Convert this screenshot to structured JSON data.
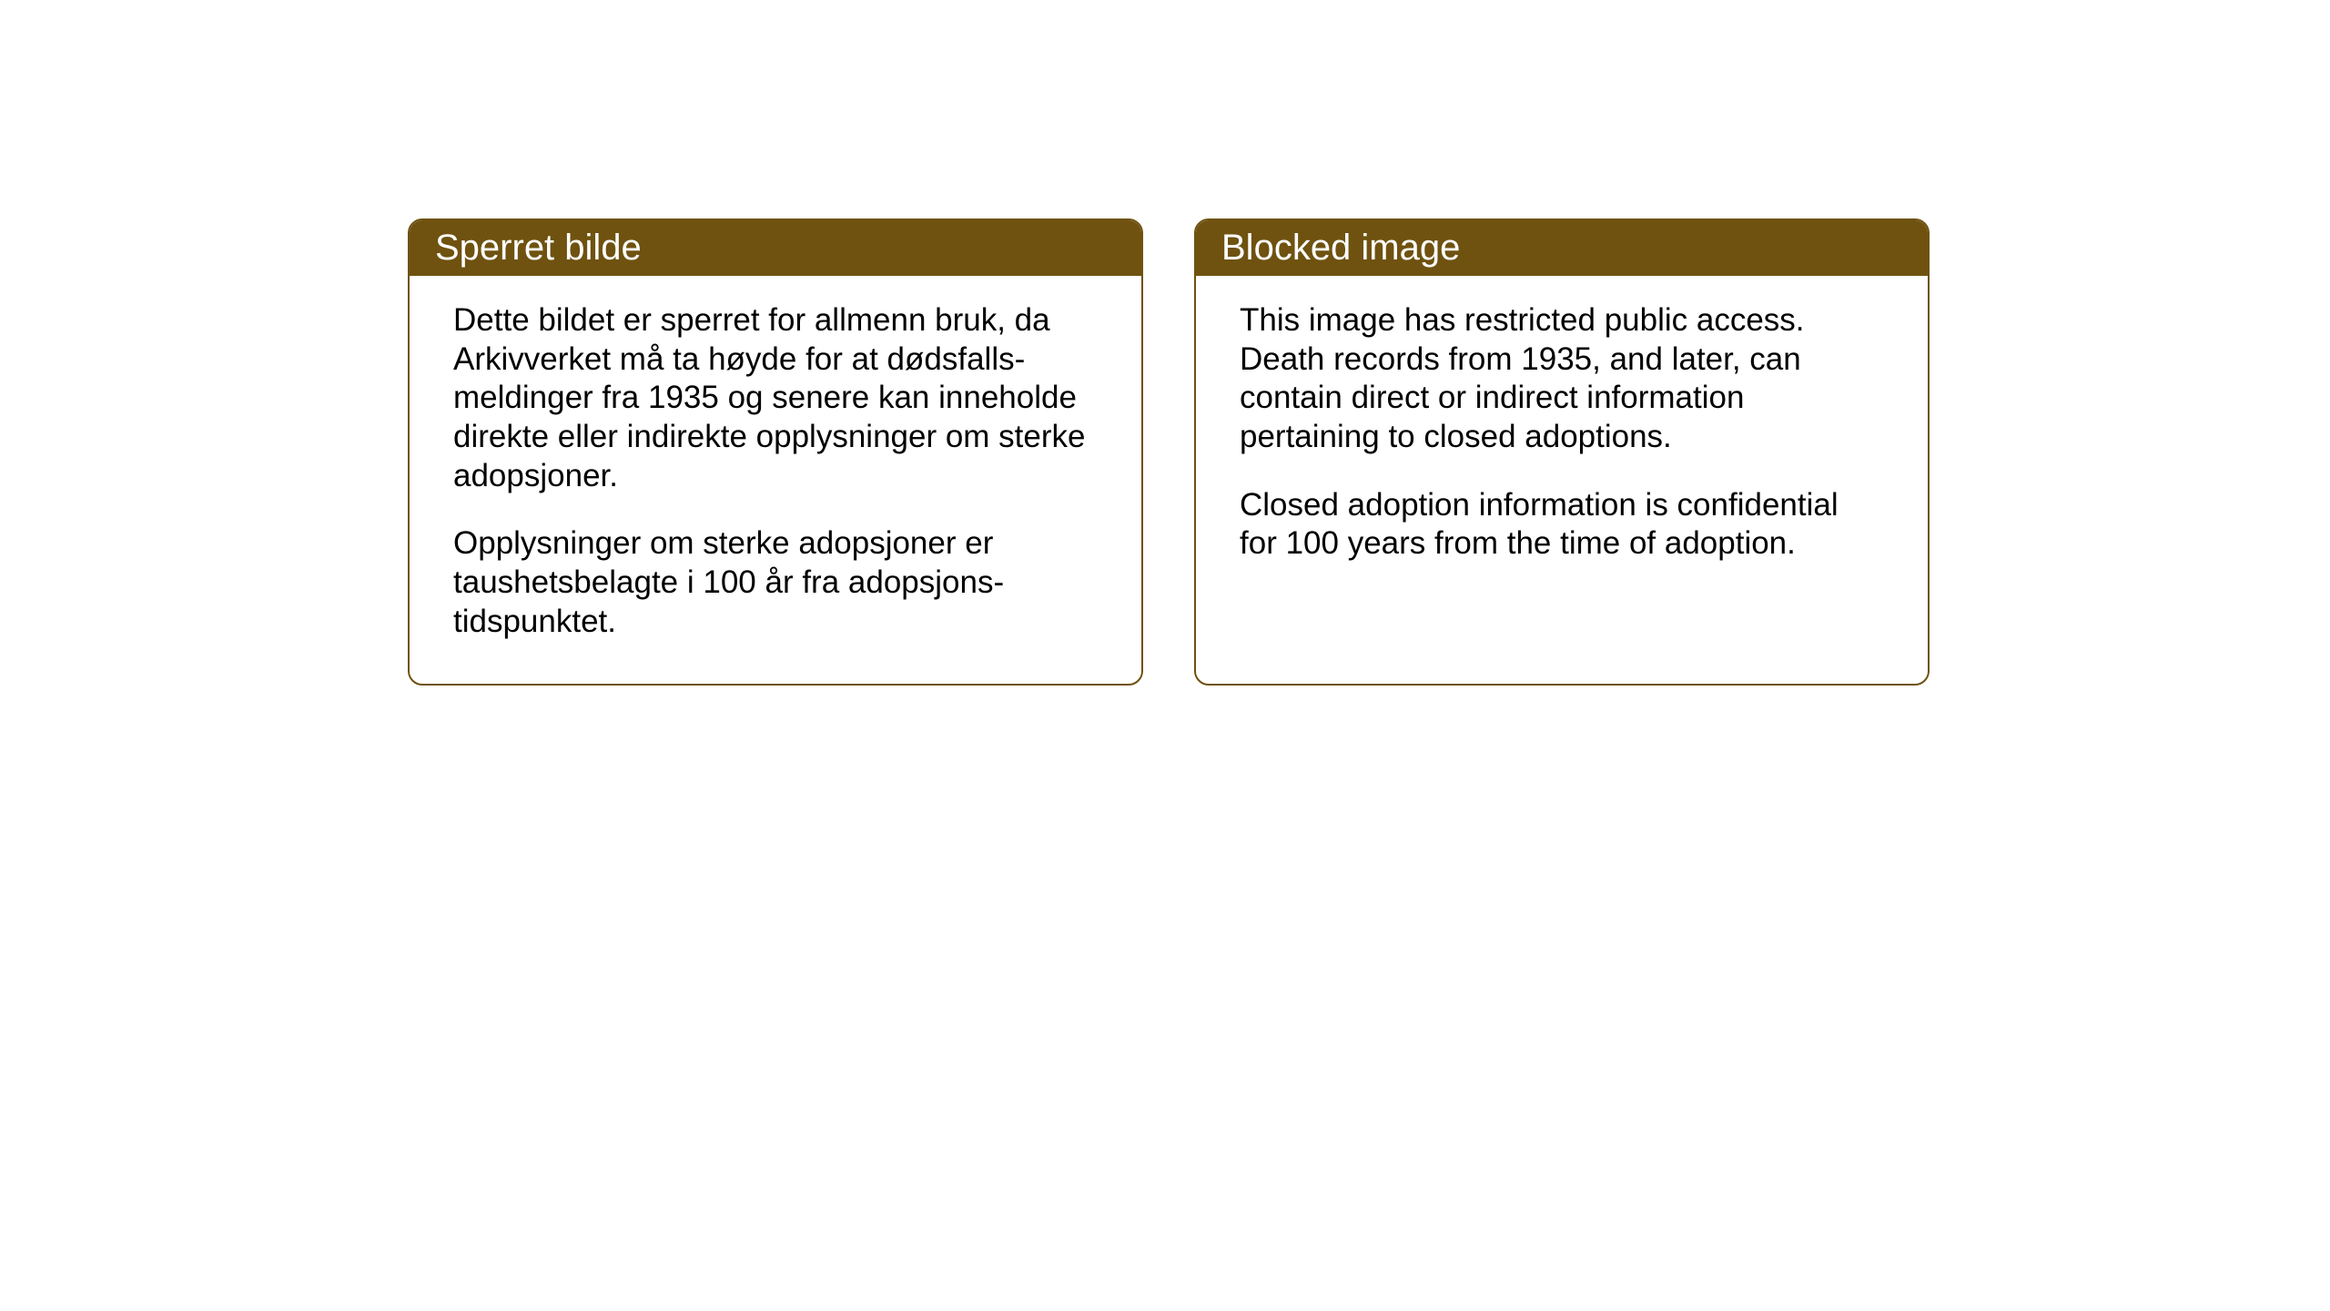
{
  "cards": {
    "norwegian": {
      "title": "Sperret bilde",
      "paragraph1": "Dette bildet er sperret for allmenn bruk, da Arkivverket må ta høyde for at dødsfalls-meldinger fra 1935 og senere kan inneholde direkte eller indirekte opplysninger om sterke adopsjoner.",
      "paragraph2": "Opplysninger om sterke adopsjoner er taushetsbelagte i 100 år fra adopsjons-tidspunktet."
    },
    "english": {
      "title": "Blocked image",
      "paragraph1": "This image has restricted public access. Death records from 1935, and later, can contain direct or indirect information pertaining to closed adoptions.",
      "paragraph2": "Closed adoption information is confidential for 100 years from the time of adoption."
    }
  },
  "styling": {
    "card_border_color": "#6f5210",
    "card_header_bg": "#6f5210",
    "card_header_text_color": "#ffffff",
    "card_body_bg": "#ffffff",
    "card_body_text_color": "#000000",
    "page_bg": "#ffffff",
    "header_fontsize": 40,
    "body_fontsize": 35,
    "border_radius": 16,
    "border_width": 2
  }
}
